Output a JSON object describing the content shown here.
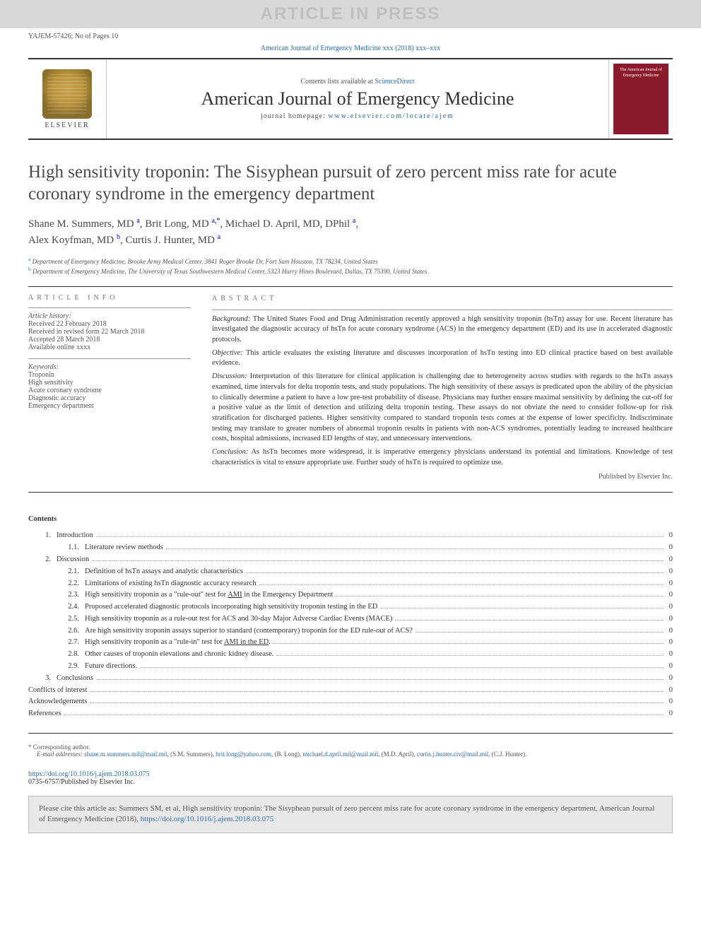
{
  "banner": {
    "text": "ARTICLE IN PRESS",
    "bg": "#d8d8d8",
    "fg": "#bfbfbf"
  },
  "header": {
    "left": "YAJEM-57426; No of Pages 10",
    "citation": "American Journal of Emergency Medicine xxx (2018) xxx–xxx"
  },
  "masthead": {
    "contents_prefix": "Contents lists available at ",
    "contents_link": "ScienceDirect",
    "journal": "American Journal of Emergency Medicine",
    "homepage_prefix": "journal homepage: ",
    "homepage_url": "www.elsevier.com/locate/ajem",
    "publisher": "ELSEVIER",
    "cover_text": "The American Journal of Emergency Medicine"
  },
  "article": {
    "title": "High sensitivity troponin: The Sisyphean pursuit of zero percent miss rate for acute coronary syndrome in the emergency department",
    "authors_line1": "Shane M. Summers, MD ",
    "authors_a1_sup": "a",
    "authors_sep1": ", Brit Long, MD ",
    "authors_a2_sup": "a,",
    "authors_star": "*",
    "authors_sep2": ", Michael D. April, MD, DPhil ",
    "authors_a3_sup": "a",
    "authors_sep3": ",",
    "authors_line2a": "Alex Koyfman, MD ",
    "authors_a4_sup": "b",
    "authors_sep4": ", Curtis J. Hunter, MD ",
    "authors_a5_sup": "a",
    "affil_a_sup": "a",
    "affil_a": " Department of Emergency Medicine, Brooke Army Medical Center, 3841 Roger Brooke Dr, Fort Sam Houston, TX 78234, United States",
    "affil_b_sup": "b",
    "affil_b": " Department of Emergency Medicine, The University of Texas Southwestern Medical Center, 5323 Harry Hines Boulevard, Dallas, TX 75390, United States"
  },
  "info": {
    "head": "ARTICLE INFO",
    "history_label": "Article history:",
    "received": "Received 22 February 2018",
    "revised": "Received in revised form 22 March 2018",
    "accepted": "Accepted 28 March 2018",
    "available": "Available online xxxx",
    "keywords_label": "Keywords:",
    "kw1": "Troponin",
    "kw2": "High sensitivity",
    "kw3": "Acute coronary syndrome",
    "kw4": "Diagnostic accuracy",
    "kw5": "Emergency department"
  },
  "abstract": {
    "head": "ABSTRACT",
    "bg_label": "Background:",
    "bg": " The United States Food and Drug Administration recently approved a high sensitivity troponin (hsTn) assay for use. Recent literature has investigated the diagnostic accuracy of hsTn for acute coronary syndrome (ACS) in the emergency department (ED) and its use in accelerated diagnostic protocols.",
    "obj_label": "Objective:",
    "obj": " This article evaluates the existing literature and discusses incorporation of hsTn testing into ED clinical practice based on best available evidence.",
    "disc_label": "Discussion:",
    "disc": " Interpretation of this literature for clinical application is challenging due to heterogeneity across studies with regards to the hsTn assays examined, time intervals for delta troponin tests, and study populations. The high sensitivity of these assays is predicated upon the ability of the physician to clinically determine a patient to have a low pre-test probability of disease. Physicians may further ensure maximal sensitivity by defining the cut-off for a positive value as the limit of detection and utilizing delta troponin testing. These assays do not obviate the need to consider follow-up for risk stratification for discharged patients. Higher sensitivity compared to standard troponin tests comes at the expense of lower specificity. Indiscriminate testing may translate to greater numbers of abnormal troponin results in patients with non-ACS syndromes, potentially leading to increased healthcare costs, hospital admissions, increased ED lengths of stay, and unnecessary interventions.",
    "conc_label": "Conclusion:",
    "conc": " As hsTn becomes more widespread, it is imperative emergency physicians understand its potential and limitations. Knowledge of test characteristics is vital to ensure appropriate use. Further study of hsTn is required to optimize use.",
    "publisher": "Published by Elsevier Inc."
  },
  "contents": {
    "title": "Contents",
    "items": [
      {
        "num": "1.",
        "sub": "",
        "text": "Introduction",
        "page": "0"
      },
      {
        "num": "",
        "sub": "1.1.",
        "text": "Literature review methods",
        "page": "0"
      },
      {
        "num": "2.",
        "sub": "",
        "text": "Discussion",
        "page": "0"
      },
      {
        "num": "",
        "sub": "2.1.",
        "text": "Definition of hsTn assays and analytic characteristics",
        "page": "0"
      },
      {
        "num": "",
        "sub": "2.2.",
        "text": "Limitations of existing hsTn diagnostic accuracy research",
        "page": "0"
      },
      {
        "num": "",
        "sub": "2.3.",
        "text": "High sensitivity troponin as a \"rule-out\" test for AMI in the Emergency Department",
        "page": "0",
        "ul": "AMI"
      },
      {
        "num": "",
        "sub": "2.4.",
        "text": "Proposed accelerated diagnostic protocols incorporating high sensitivity troponin testing in the ED",
        "page": "0"
      },
      {
        "num": "",
        "sub": "2.5.",
        "text": "High sensitivity troponin as a rule-out test for ACS and 30-day Major Adverse Cardiac Events (MACE)",
        "page": "0"
      },
      {
        "num": "",
        "sub": "2.6.",
        "text": "Are high sensitivity troponin assays superior to standard (contemporary) troponin for the ED rule-out of ACS?",
        "page": "0"
      },
      {
        "num": "",
        "sub": "2.7.",
        "text": "High sensitivity troponin as a \"rule-in\" test for AMI in the ED.",
        "page": "0",
        "ul": "AMI in the ED"
      },
      {
        "num": "",
        "sub": "2.8.",
        "text": "Other causes of troponin elevations and chronic kidney disease.",
        "page": "0"
      },
      {
        "num": "",
        "sub": "2.9.",
        "text": "Future directions.",
        "page": "0"
      },
      {
        "num": "3.",
        "sub": "",
        "text": "Conclusions",
        "page": "0"
      },
      {
        "num": "",
        "sub": "",
        "text": "Conflicts of interest",
        "page": "0",
        "flush": true
      },
      {
        "num": "",
        "sub": "",
        "text": "Acknowledgements",
        "page": "0",
        "flush": true
      },
      {
        "num": "",
        "sub": "",
        "text": "References",
        "page": "0",
        "flush": true
      }
    ]
  },
  "footnotes": {
    "corr_star": "*",
    "corr": " Corresponding author.",
    "email_label": "E-mail addresses: ",
    "e1": "shane.m.summers.mil@mail.mil",
    "n1": ", (S.M. Summers), ",
    "e2": "brit.long@yahoo.com",
    "n2": ", (B. Long), ",
    "e3": "michael.d.april.mil@mail.mil",
    "n3": ", (M.D. April), ",
    "e4": "curtis.j.hunter.civ@mail.mil",
    "n4": ", (C.J. Hunter)."
  },
  "doi": {
    "url": "https://doi.org/10.1016/j.ajem.2018.03.075",
    "line2": "0735-6757/Published by Elsevier Inc."
  },
  "citebox": {
    "pre": "Please cite this article as: Summers SM, et al, High sensitivity troponin: The Sisyphean pursuit of zero percent miss rate for acute coronary syndrome in the emergency department, American Journal of Emergency Medicine (2018), ",
    "link": "https://doi.org/10.1016/j.ajem.2018.03.075"
  },
  "colors": {
    "link": "#2a6ebb",
    "cover_bg": "#8b1a2b",
    "banner_bg": "#d8d8d8",
    "citebox_bg": "#e8e8e8",
    "rule": "#333333"
  }
}
